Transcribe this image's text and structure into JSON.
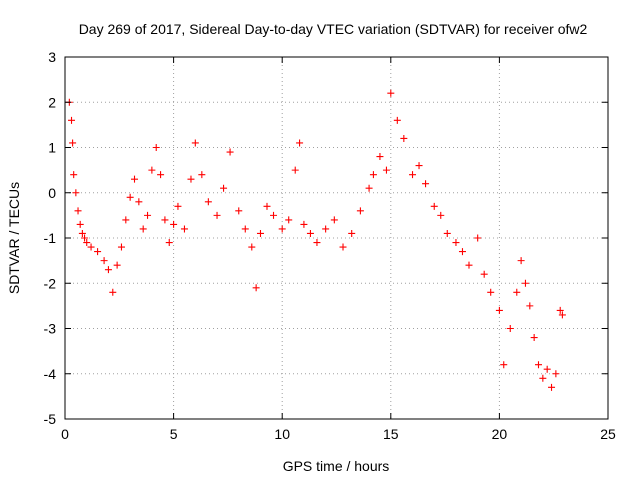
{
  "chart_data": {
    "type": "scatter",
    "title": "Day 269 of 2017, Sidereal Day-to-day VTEC variation (SDTVAR) for receiver ofw2",
    "xlabel": "GPS time / hours",
    "ylabel": "SDTVAR / TECUs",
    "xlim": [
      0,
      25
    ],
    "ylim": [
      -5,
      3
    ],
    "xticks": [
      0,
      5,
      10,
      15,
      20,
      25
    ],
    "yticks": [
      -5,
      -4,
      -3,
      -2,
      -1,
      0,
      1,
      2,
      3
    ],
    "grid": true,
    "marker": "plus",
    "color": "#ff0000",
    "series": [
      {
        "name": "SDTVAR",
        "x": [
          0.2,
          0.3,
          0.35,
          0.4,
          0.5,
          0.6,
          0.7,
          0.8,
          0.9,
          1.0,
          1.2,
          1.5,
          1.8,
          2.0,
          2.2,
          2.4,
          2.6,
          2.8,
          3.0,
          3.2,
          3.4,
          3.6,
          3.8,
          4.0,
          4.2,
          4.4,
          4.6,
          4.8,
          5.0,
          5.2,
          5.5,
          5.8,
          6.0,
          6.3,
          6.6,
          7.0,
          7.3,
          7.6,
          8.0,
          8.3,
          8.6,
          8.8,
          9.0,
          9.3,
          9.6,
          10.0,
          10.3,
          10.6,
          10.8,
          11.0,
          11.3,
          11.6,
          12.0,
          12.4,
          12.8,
          13.2,
          13.6,
          14.0,
          14.2,
          14.5,
          14.8,
          15.0,
          15.3,
          15.6,
          16.0,
          16.3,
          16.6,
          17.0,
          17.3,
          17.6,
          18.0,
          18.3,
          18.6,
          19.0,
          19.3,
          19.6,
          20.0,
          20.2,
          20.5,
          20.8,
          21.0,
          21.2,
          21.4,
          21.6,
          21.8,
          22.0,
          22.2,
          22.4,
          22.6,
          22.8,
          22.9
        ],
        "y": [
          2.0,
          1.6,
          1.1,
          0.4,
          0.0,
          -0.4,
          -0.7,
          -0.9,
          -1.0,
          -1.1,
          -1.2,
          -1.3,
          -1.5,
          -1.7,
          -2.2,
          -1.6,
          -1.2,
          -0.6,
          -0.1,
          0.3,
          -0.2,
          -0.8,
          -0.5,
          0.5,
          1.0,
          0.4,
          -0.6,
          -1.1,
          -0.7,
          -0.3,
          -0.8,
          0.3,
          1.1,
          0.4,
          -0.2,
          -0.5,
          0.1,
          0.9,
          -0.4,
          -0.8,
          -1.2,
          -2.1,
          -0.9,
          -0.3,
          -0.5,
          -0.8,
          -0.6,
          0.5,
          1.1,
          -0.7,
          -0.9,
          -1.1,
          -0.8,
          -0.6,
          -1.2,
          -0.9,
          -0.4,
          0.1,
          0.4,
          0.8,
          0.5,
          2.2,
          1.6,
          1.2,
          0.4,
          0.6,
          0.2,
          -0.3,
          -0.5,
          -0.9,
          -1.1,
          -1.3,
          -1.6,
          -1.0,
          -1.8,
          -2.2,
          -2.6,
          -3.8,
          -3.0,
          -2.2,
          -1.5,
          -2.0,
          -2.5,
          -3.2,
          -3.8,
          -4.1,
          -3.9,
          -4.3,
          -4.0,
          -2.6,
          -2.7
        ]
      }
    ]
  }
}
